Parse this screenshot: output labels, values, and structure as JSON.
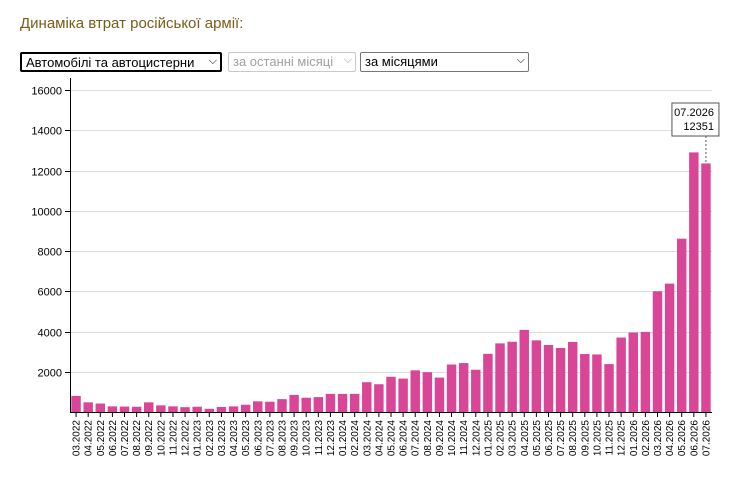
{
  "header": {
    "title": "Динаміка втрат російської армії:"
  },
  "filters": {
    "category": "Автомобілі та автоцистерни",
    "period": "за останні місяці",
    "grouping": "за місяцями"
  },
  "colors": {
    "bar": "#d94597",
    "title": "#7a5c18",
    "grid": "#dddddd",
    "axis": "#000000"
  },
  "tooltip": {
    "date": "07.2026",
    "value": "12351"
  },
  "chart_data": {
    "type": "bar",
    "title": "",
    "xlabel": "",
    "ylabel": "",
    "ylim": [
      0,
      16000
    ],
    "yticks": [
      2000,
      4000,
      6000,
      8000,
      10000,
      12000,
      14000,
      16000
    ],
    "grid": true,
    "categories": [
      "03.2022",
      "04.2022",
      "05.2022",
      "06.2022",
      "07.2022",
      "08.2022",
      "09.2022",
      "10.2022",
      "11.2022",
      "12.2022",
      "01.2023",
      "02.2023",
      "03.2023",
      "04.2023",
      "05.2023",
      "06.2023",
      "07.2023",
      "08.2023",
      "09.2023",
      "10.2023",
      "11.2023",
      "12.2023",
      "01.2024",
      "02.2024",
      "03.2024",
      "04.2024",
      "05.2024",
      "06.2024",
      "07.2024",
      "08.2024",
      "09.2024",
      "10.2024",
      "11.2024",
      "12.2024",
      "01.2025",
      "02.2025",
      "03.2025",
      "04.2025",
      "05.2025",
      "06.2025",
      "07.2025",
      "08.2025",
      "09.2025",
      "10.2025",
      "11.2025",
      "12.2025",
      "01.2026",
      "02.2026",
      "03.2026",
      "04.2026",
      "05.2026",
      "06.2026",
      "07.2026"
    ],
    "values": [
      800,
      480,
      420,
      280,
      270,
      260,
      480,
      330,
      280,
      240,
      260,
      160,
      250,
      280,
      360,
      530,
      510,
      640,
      850,
      710,
      740,
      900,
      900,
      900,
      1480,
      1380,
      1750,
      1660,
      2070,
      1980,
      1710,
      2360,
      2430,
      2100,
      2890,
      3410,
      3490,
      4080,
      3560,
      3330,
      3180,
      3480,
      2880,
      2860,
      2380,
      3700,
      3950,
      3980,
      6000,
      6380,
      8610,
      12900,
      12351
    ]
  }
}
